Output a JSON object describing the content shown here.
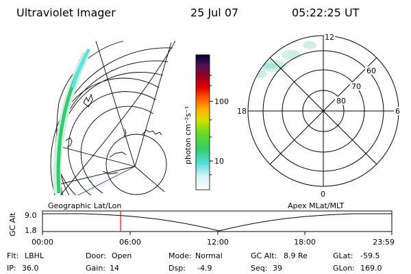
{
  "header": {
    "title": "Ultraviolet Imager",
    "date": "25 Jul 07",
    "time": "05:22:25 UT"
  },
  "colorbar": {
    "label": "photon cm⁻²s⁻¹",
    "ticks": [
      "100",
      "10"
    ]
  },
  "left_map": {
    "label": "Geographic Lat/Lon"
  },
  "polar": {
    "label": "Apex MLat/MLT",
    "mlt": {
      "top": "12",
      "left": "18",
      "right": "6",
      "bottom": "0"
    },
    "lat": [
      "60",
      "70",
      "80"
    ]
  },
  "timeline": {
    "axis_label": "GC Alt",
    "y_ticks": [
      "9.0",
      "1.8"
    ],
    "x_ticks": [
      "00:00",
      "06:00",
      "12:00",
      "18:00",
      "23:59"
    ],
    "current_time_hours": 5.37
  },
  "status": [
    [
      {
        "key": "Flt:",
        "value": "LBHL"
      },
      {
        "key": "Door:",
        "value": "Open"
      },
      {
        "key": "Mode:",
        "value": "Normal"
      },
      {
        "key": "GC Alt:",
        "value": "8.9 Re"
      },
      {
        "key": "GLat:",
        "value": "-59.5"
      }
    ],
    [
      {
        "key": "IP:",
        "value": "36.0"
      },
      {
        "key": "Gain:",
        "value": "14"
      },
      {
        "key": "Dsp:",
        "value": "-4.9"
      },
      {
        "key": "Seq:",
        "value": "39"
      },
      {
        "key": "GLon:",
        "value": "169.0"
      }
    ]
  ],
  "colors": {
    "aurora_green": "#33cc66",
    "aurora_cyan": "#66e0e0",
    "aurora_faint": "#cfeee6",
    "marker_red": "#ff0000",
    "meridian_blue": "#3355aa"
  }
}
